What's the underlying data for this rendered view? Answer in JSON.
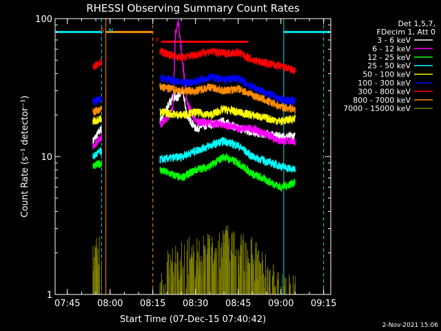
{
  "chart_data": {
    "type": "line",
    "title": "RHESSI Observing Summary Count Rates",
    "xlabel": "Start Time (07-Dec-15 07:40:42)",
    "ylabel": "Count Rate (s⁻¹ detector⁻¹)",
    "y_scale": "log",
    "ylim": [
      1,
      100
    ],
    "xlim": [
      "07:40:42",
      "09:17:30"
    ],
    "x_ticks": [
      "07:45",
      "08:00",
      "08:15",
      "08:30",
      "08:45",
      "09:00",
      "09:15"
    ],
    "y_ticks": [
      "1",
      "10",
      "100"
    ],
    "grid": false,
    "legend_position": "top-right",
    "legend_header": [
      "Det 1,5,7,",
      "FDecim 1, Att 0"
    ],
    "footer": "2-Nov-2021 15:06",
    "flags": [
      {
        "label": "S",
        "color": "#ff8c00",
        "start": "07:58:30",
        "end": "08:15:00",
        "value": 80
      },
      {
        "label": "N",
        "color": "#00e5ee",
        "start": "07:59:00",
        "end": "07:59:00",
        "value": 80
      },
      {
        "label": "F",
        "color": "#ff0000",
        "start": "08:18:00",
        "end": "08:48:30",
        "value": 68
      }
    ],
    "attenuator_lines": [
      {
        "time": "07:57:00",
        "color": "#00e5ee",
        "style": "dashed"
      },
      {
        "time": "07:58:30",
        "color": "#ff8c00",
        "style": "solid"
      },
      {
        "time": "08:15:00",
        "color": "#ff8c00",
        "style": "dashed"
      },
      {
        "time": "09:01:00",
        "color": "#00e5ee",
        "style": "solid"
      },
      {
        "time": "09:15:00",
        "color": "#00e5ee",
        "style": "dashed"
      }
    ],
    "intervals": [
      {
        "start": "07:54:00",
        "end": "07:57:00"
      },
      {
        "start": "08:17:30",
        "end": "08:49:00"
      },
      {
        "start": "08:49:00",
        "end": "09:05:00"
      }
    ],
    "series": [
      {
        "name": "3 - 6 keV",
        "color": "#ffffff",
        "x": [
          "07:54:00",
          "07:57:00",
          "08:17:30",
          "08:22:00",
          "08:24:00",
          "08:25:30",
          "08:27:00",
          "08:30:00",
          "08:40:00",
          "08:45:00",
          "08:50:00",
          "09:00:00",
          "09:05:00"
        ],
        "values": [
          13,
          16,
          18,
          27,
          27,
          30,
          20,
          16,
          18,
          16,
          15,
          14,
          14
        ]
      },
      {
        "name": "6 - 12 keV",
        "color": "#ff00ff",
        "x": [
          "07:54:00",
          "07:57:00",
          "08:17:30",
          "08:20:00",
          "08:22:00",
          "08:23:00",
          "08:24:00",
          "08:25:00",
          "08:27:00",
          "08:30:00",
          "08:40:00",
          "08:45:00",
          "08:50:00",
          "09:00:00",
          "09:05:00"
        ],
        "values": [
          12,
          14,
          17,
          19,
          22,
          80,
          95,
          60,
          25,
          18,
          17,
          16,
          16,
          13,
          13
        ]
      },
      {
        "name": "12 - 25 keV",
        "color": "#00ff00",
        "x": [
          "07:54:00",
          "07:57:00",
          "08:17:30",
          "08:25:00",
          "08:30:00",
          "08:35:00",
          "08:40:00",
          "08:45:00",
          "08:50:00",
          "09:00:00",
          "09:05:00"
        ],
        "values": [
          8.5,
          9,
          8,
          7,
          8,
          8.5,
          10,
          9,
          7.5,
          6,
          6.5
        ]
      },
      {
        "name": "25 - 50 keV",
        "color": "#00ffff",
        "x": [
          "07:54:00",
          "07:57:00",
          "08:17:30",
          "08:25:00",
          "08:30:00",
          "08:35:00",
          "08:40:00",
          "08:45:00",
          "08:50:00",
          "09:00:00",
          "09:05:00"
        ],
        "values": [
          10,
          11,
          9.5,
          10,
          11,
          12,
          13,
          12,
          10,
          8.5,
          8
        ]
      },
      {
        "name": "50 - 100 keV",
        "color": "#ffff00",
        "x": [
          "07:54:00",
          "07:57:00",
          "08:17:30",
          "08:25:00",
          "08:30:00",
          "08:35:00",
          "08:40:00",
          "08:45:00",
          "08:50:00",
          "09:00:00",
          "09:05:00"
        ],
        "values": [
          18,
          19,
          21,
          20,
          21,
          20,
          22,
          21,
          20,
          18,
          19
        ]
      },
      {
        "name": "100 - 300 keV",
        "color": "#0000ff",
        "x": [
          "07:54:00",
          "07:57:00",
          "08:17:30",
          "08:25:00",
          "08:30:00",
          "08:35:00",
          "08:40:00",
          "08:45:00",
          "08:50:00",
          "09:00:00",
          "09:05:00"
        ],
        "values": [
          25,
          26,
          38,
          34,
          35,
          38,
          36,
          37,
          32,
          26,
          25
        ]
      },
      {
        "name": "300 - 800 keV",
        "color": "#ff0000",
        "x": [
          "07:54:00",
          "07:57:00",
          "08:17:30",
          "08:25:00",
          "08:30:00",
          "08:35:00",
          "08:40:00",
          "08:45:00",
          "08:50:00",
          "09:00:00",
          "09:05:00"
        ],
        "values": [
          45,
          48,
          58,
          52,
          55,
          58,
          56,
          57,
          50,
          45,
          42
        ]
      },
      {
        "name": "800 - 7000 keV",
        "color": "#ff8c00",
        "x": [
          "07:54:00",
          "07:57:00",
          "08:17:30",
          "08:25:00",
          "08:30:00",
          "08:35:00",
          "08:40:00",
          "08:45:00",
          "08:50:00",
          "09:00:00",
          "09:05:00"
        ],
        "values": [
          21,
          22,
          32,
          30,
          30,
          32,
          30,
          31,
          28,
          23,
          22
        ]
      },
      {
        "name": "7000 - 15000 keV",
        "color": "#808000",
        "x": [
          "07:54:00",
          "07:57:00",
          "08:17:30",
          "08:20:00",
          "08:30:00",
          "08:32:00",
          "08:38:00",
          "08:42:00",
          "08:45:00",
          "08:49:00",
          "09:00:00",
          "09:05:00"
        ],
        "values": [
          1.8,
          2,
          1,
          1.5,
          2,
          2,
          2,
          2.5,
          2,
          2,
          1,
          1
        ]
      }
    ]
  }
}
